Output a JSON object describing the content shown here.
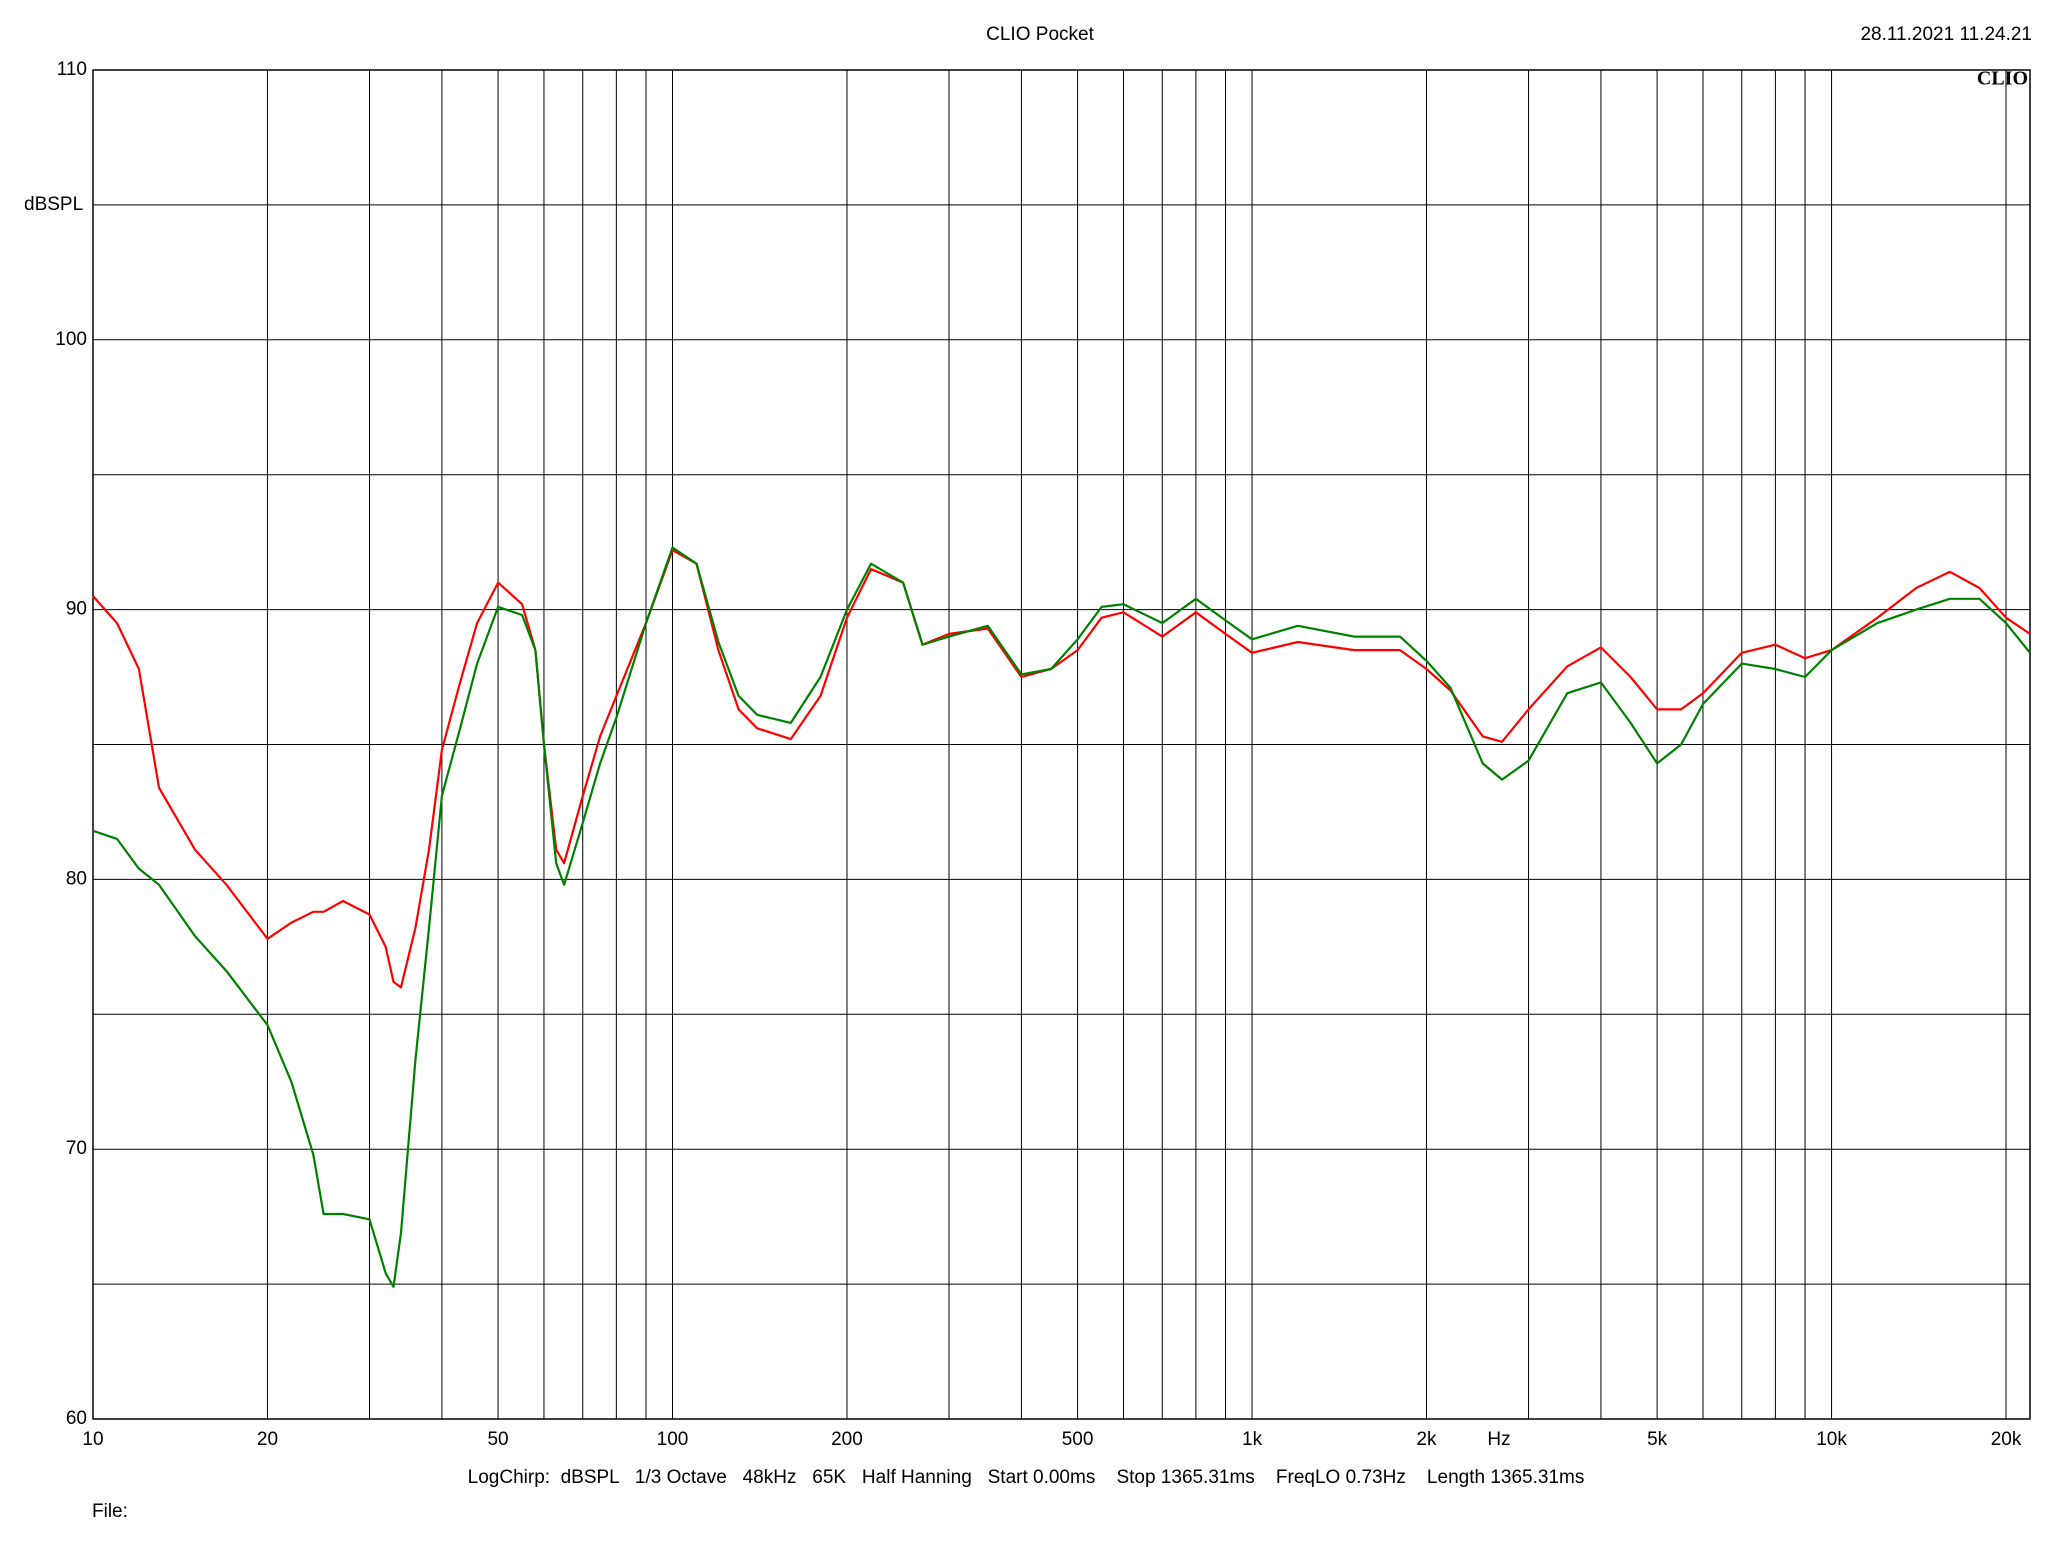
{
  "chart_data": {
    "type": "line",
    "title": "CLIO Pocket",
    "timestamp": "28.11.2021 11.24.21",
    "logo": "CLIO",
    "y_label": "dBSPL",
    "x_label": "Hz",
    "footer": "LogChirp:  dBSPL   1/3 Octave   48kHz   65K   Half Hanning   Start 0.00ms    Stop 1365.31ms    FreqLO 0.73Hz    Length 1365.31ms",
    "file_label": "File:",
    "log_x": true,
    "grid": true,
    "xlim": [
      10,
      22000
    ],
    "ylim": [
      60,
      110
    ],
    "xticks": [
      10,
      20,
      50,
      100,
      200,
      500,
      {
        "value": 1000,
        "label": "1k"
      },
      {
        "value": 2000,
        "label": "2k"
      },
      {
        "value": 5000,
        "label": "5k"
      },
      {
        "value": 10000,
        "label": "10k"
      },
      {
        "value": 20000,
        "label": "20k"
      }
    ],
    "x_minor_ticks": [
      30,
      40,
      60,
      70,
      80,
      90,
      300,
      400,
      600,
      700,
      800,
      900,
      3000,
      4000,
      6000,
      7000,
      8000,
      9000
    ],
    "yticks": [
      60,
      70,
      80,
      90,
      100,
      110
    ],
    "y_minor_ticks": [
      65,
      75,
      85,
      95,
      105
    ],
    "x": [
      10,
      11,
      12,
      13,
      15,
      17,
      20,
      22,
      24,
      25,
      27,
      30,
      32,
      33,
      34,
      36,
      38,
      40,
      43,
      46,
      50,
      55,
      58,
      60,
      63,
      65,
      70,
      75,
      80,
      90,
      100,
      110,
      120,
      130,
      140,
      160,
      180,
      200,
      220,
      250,
      270,
      300,
      350,
      400,
      450,
      500,
      550,
      600,
      700,
      800,
      900,
      1000,
      1200,
      1500,
      1800,
      2000,
      2200,
      2500,
      2700,
      3000,
      3500,
      4000,
      4500,
      5000,
      5500,
      6000,
      7000,
      8000,
      9000,
      10000,
      12000,
      14000,
      16000,
      18000,
      20000,
      22000
    ],
    "series": [
      {
        "color": "#ff0000",
        "values": [
          90.5,
          89.5,
          87.8,
          83.4,
          81.1,
          79.8,
          77.8,
          78.4,
          78.8,
          78.8,
          79.2,
          78.7,
          77.5,
          76.2,
          76.0,
          78.2,
          81.1,
          84.8,
          87.3,
          89.5,
          91.0,
          90.2,
          88.5,
          85.0,
          81.1,
          80.6,
          83.1,
          85.3,
          86.8,
          89.5,
          92.2,
          91.7,
          88.5,
          86.3,
          85.6,
          85.2,
          86.8,
          89.7,
          91.5,
          91.0,
          88.7,
          89.1,
          89.3,
          87.5,
          87.8,
          88.5,
          89.7,
          89.9,
          89.0,
          89.9,
          89.1,
          88.4,
          88.8,
          88.5,
          88.5,
          87.8,
          87.0,
          85.3,
          85.1,
          86.3,
          87.9,
          88.6,
          87.5,
          86.3,
          86.3,
          86.9,
          88.4,
          88.7,
          88.2,
          88.5,
          89.7,
          90.8,
          91.4,
          90.8,
          89.7,
          89.1
        ]
      },
      {
        "color": "#008000",
        "values": [
          81.8,
          81.5,
          80.4,
          79.8,
          77.9,
          76.6,
          74.6,
          72.5,
          69.8,
          67.6,
          67.6,
          67.4,
          65.4,
          64.9,
          66.9,
          73.3,
          78.2,
          83.1,
          85.6,
          88.0,
          90.1,
          89.8,
          88.5,
          85.0,
          80.6,
          79.8,
          82.1,
          84.3,
          86.0,
          89.5,
          92.3,
          91.7,
          88.8,
          86.8,
          86.1,
          85.8,
          87.5,
          90.0,
          91.7,
          91.0,
          88.7,
          89.0,
          89.4,
          87.6,
          87.8,
          88.9,
          90.1,
          90.2,
          89.5,
          90.4,
          89.6,
          88.9,
          89.4,
          89.0,
          89.0,
          88.1,
          87.1,
          84.3,
          83.7,
          84.4,
          86.9,
          87.3,
          85.8,
          84.3,
          85.0,
          86.5,
          88.0,
          87.8,
          87.5,
          88.5,
          89.5,
          90.0,
          90.4,
          90.4,
          89.5,
          88.4
        ]
      }
    ]
  }
}
